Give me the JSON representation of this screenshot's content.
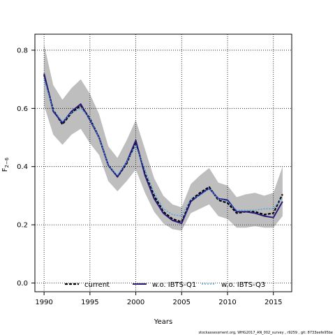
{
  "chart_data": {
    "type": "line",
    "xlabel": "Years",
    "ylabel": "F",
    "ylabel_sub": "2−6",
    "xlim": [
      1989,
      2017
    ],
    "ylim": [
      -0.03,
      0.855
    ],
    "x_ticks": [
      1990,
      1995,
      2000,
      2005,
      2010,
      2015
    ],
    "y_ticks": [
      0.0,
      0.2,
      0.4,
      0.6,
      0.8
    ],
    "y_tick_labels": [
      "0.0",
      "0.2",
      "0.4",
      "0.6",
      "0.8"
    ],
    "grid": true,
    "grid_style": "dotted",
    "legend_position": "bottom",
    "x": [
      1990,
      1991,
      1992,
      1993,
      1994,
      1995,
      1996,
      1997,
      1998,
      1999,
      2000,
      2001,
      2002,
      2003,
      2004,
      2005,
      2006,
      2007,
      2008,
      2009,
      2010,
      2011,
      2012,
      2013,
      2014,
      2015,
      2016
    ],
    "confidence_band": {
      "color": "#bebebe",
      "upper": [
        0.82,
        0.68,
        0.63,
        0.67,
        0.7,
        0.65,
        0.58,
        0.47,
        0.43,
        0.49,
        0.56,
        0.46,
        0.36,
        0.3,
        0.27,
        0.26,
        0.34,
        0.37,
        0.395,
        0.345,
        0.335,
        0.295,
        0.305,
        0.31,
        0.3,
        0.31,
        0.4
      ],
      "lower": [
        0.61,
        0.51,
        0.475,
        0.51,
        0.53,
        0.48,
        0.44,
        0.35,
        0.315,
        0.35,
        0.39,
        0.31,
        0.245,
        0.205,
        0.185,
        0.18,
        0.24,
        0.255,
        0.27,
        0.23,
        0.22,
        0.19,
        0.19,
        0.195,
        0.19,
        0.19,
        0.23
      ]
    },
    "series": [
      {
        "name": "current",
        "color": "#000000",
        "dash": "4,2",
        "width": 2.2,
        "values": [
          0.715,
          0.595,
          0.545,
          0.585,
          0.61,
          0.565,
          0.5,
          0.405,
          0.365,
          0.41,
          0.485,
          0.375,
          0.3,
          0.245,
          0.22,
          0.21,
          0.285,
          0.31,
          0.33,
          0.285,
          0.275,
          0.24,
          0.245,
          0.245,
          0.235,
          0.24,
          0.305
        ]
      },
      {
        "name": "w.o. IBTS-Q1",
        "color": "#2b1a7a",
        "dash": "",
        "width": 2.0,
        "values": [
          0.72,
          0.59,
          0.55,
          0.59,
          0.615,
          0.56,
          0.5,
          0.405,
          0.365,
          0.415,
          0.49,
          0.37,
          0.29,
          0.24,
          0.215,
          0.205,
          0.28,
          0.305,
          0.325,
          0.29,
          0.285,
          0.245,
          0.245,
          0.24,
          0.23,
          0.225,
          0.28
        ]
      },
      {
        "name": "w.o. IBTS-Q3",
        "color": "#3aa0e8",
        "dash": "2,2",
        "width": 1.3,
        "values": [
          0.7,
          0.595,
          0.555,
          0.585,
          0.6,
          0.565,
          0.5,
          0.405,
          0.37,
          0.415,
          0.47,
          0.39,
          0.31,
          0.255,
          0.235,
          0.23,
          0.29,
          0.3,
          0.325,
          0.29,
          0.28,
          0.25,
          0.25,
          0.25,
          0.255,
          0.255,
          0.295
        ]
      }
    ]
  },
  "footer": {
    "text": "stockassessment.org, WHG2017_AN_002_survey , r9259 , git: 8733eefe95be"
  }
}
